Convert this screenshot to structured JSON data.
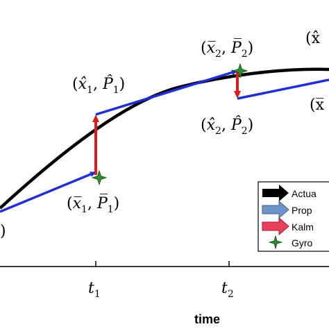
{
  "axis": {
    "x_label": "time",
    "ticks": [
      {
        "name": "t",
        "sub": "1"
      },
      {
        "name": "t",
        "sub": "2"
      }
    ]
  },
  "labels": {
    "x1_hat": {
      "var": "x̂",
      "sub": "1",
      "cov": "P̂",
      "cov_sub": "1"
    },
    "x1_bar": {
      "var": "x̅",
      "sub": "1",
      "cov": "P̅",
      "cov_sub": "1"
    },
    "x2_bar": {
      "var": "x̅",
      "sub": "2",
      "cov": "P̅",
      "cov_sub": "2"
    },
    "x2_hat": {
      "var": "x̂",
      "sub": "2",
      "cov": "P̂",
      "cov_sub": "2"
    },
    "x3_bar_partial": "(x̂",
    "x3_hat_partial": "(x̅",
    "left_paren": ")"
  },
  "legend": {
    "items": [
      {
        "label": "Actua",
        "icon": "black-arrow-icon",
        "color": "#000000"
      },
      {
        "label": "Prop",
        "icon": "blue-arrow-icon",
        "color": "#6f94c9"
      },
      {
        "label": "Kalm",
        "icon": "red-arrow-icon",
        "color": "#e8405a"
      },
      {
        "label": "Gyro",
        "icon": "green-star-icon",
        "color": "#2e8b2e"
      }
    ]
  },
  "colors": {
    "actual": "#000000",
    "propagation": "#1f2fd6",
    "kalman": "#e01b1b",
    "gyro": "#2e8b2e"
  }
}
